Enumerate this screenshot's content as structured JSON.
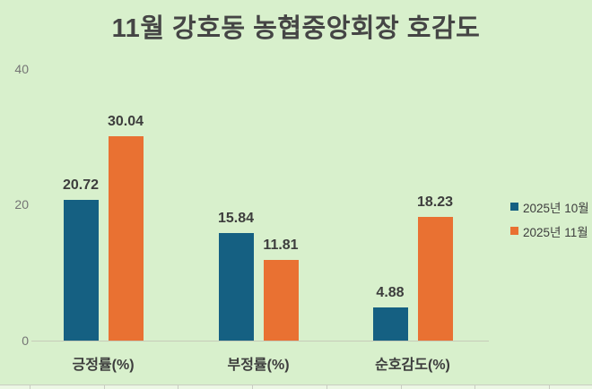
{
  "chart_data": {
    "type": "bar",
    "title": "11월 강호동 농협중앙회장 호감도",
    "categories": [
      "긍정률(%)",
      "부정률(%)",
      "순호감도(%)"
    ],
    "series": [
      {
        "name": "2025년 10월",
        "color": "#156082",
        "values": [
          20.72,
          15.84,
          4.88
        ]
      },
      {
        "name": "2025년 11월",
        "color": "#E97132",
        "values": [
          30.04,
          11.81,
          18.23
        ]
      }
    ],
    "ylim": [
      0,
      40
    ],
    "yticks": [
      0,
      20,
      40
    ],
    "grid": false,
    "data_labels_shown": true,
    "legend_position": "right"
  },
  "colors": {
    "background": "#D8F0CC",
    "title_text": "#454545",
    "data_label_text": "#3D3D3D",
    "axis_tick_text": "#757575",
    "axis_line": "#C6CBB9",
    "sheet_gridline": "#C9CDC2",
    "sheet_cell_bg": "#ECF7E4"
  }
}
